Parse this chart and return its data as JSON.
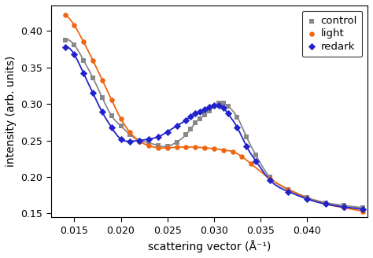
{
  "title": "",
  "xlabel": "scattering vector (Å⁻¹)",
  "ylabel": "intensity (arb. units)",
  "xlim": [
    0.0125,
    0.0465
  ],
  "ylim": [
    0.145,
    0.435
  ],
  "yticks": [
    0.15,
    0.2,
    0.25,
    0.3,
    0.35,
    0.4
  ],
  "xticks": [
    0.015,
    0.02,
    0.025,
    0.03,
    0.035,
    0.04
  ],
  "control_color": "#888888",
  "light_color": "#ee6611",
  "redark_color": "#2222cc",
  "control_x": [
    0.014,
    0.015,
    0.016,
    0.017,
    0.018,
    0.019,
    0.02,
    0.021,
    0.022,
    0.023,
    0.024,
    0.025,
    0.026,
    0.027,
    0.0275,
    0.028,
    0.0285,
    0.029,
    0.0295,
    0.03,
    0.0305,
    0.031,
    0.0315,
    0.0325,
    0.0335,
    0.0345,
    0.036,
    0.038,
    0.04,
    0.042,
    0.044,
    0.046
  ],
  "control_y": [
    0.388,
    0.381,
    0.36,
    0.336,
    0.309,
    0.284,
    0.27,
    0.258,
    0.25,
    0.247,
    0.243,
    0.242,
    0.248,
    0.258,
    0.266,
    0.274,
    0.28,
    0.285,
    0.291,
    0.297,
    0.301,
    0.301,
    0.297,
    0.282,
    0.255,
    0.23,
    0.2,
    0.183,
    0.172,
    0.165,
    0.161,
    0.158
  ],
  "light_x": [
    0.014,
    0.015,
    0.016,
    0.017,
    0.018,
    0.019,
    0.02,
    0.021,
    0.022,
    0.023,
    0.024,
    0.025,
    0.026,
    0.027,
    0.028,
    0.029,
    0.03,
    0.031,
    0.032,
    0.033,
    0.034,
    0.036,
    0.038,
    0.04,
    0.042,
    0.044,
    0.046
  ],
  "light_y": [
    0.422,
    0.408,
    0.385,
    0.36,
    0.333,
    0.306,
    0.28,
    0.261,
    0.249,
    0.243,
    0.24,
    0.24,
    0.241,
    0.241,
    0.241,
    0.24,
    0.239,
    0.237,
    0.235,
    0.228,
    0.218,
    0.198,
    0.183,
    0.171,
    0.163,
    0.158,
    0.153
  ],
  "redark_x": [
    0.014,
    0.015,
    0.016,
    0.017,
    0.018,
    0.019,
    0.02,
    0.021,
    0.022,
    0.023,
    0.024,
    0.025,
    0.026,
    0.027,
    0.0275,
    0.028,
    0.0285,
    0.029,
    0.0295,
    0.03,
    0.0305,
    0.031,
    0.0315,
    0.0325,
    0.0335,
    0.0345,
    0.036,
    0.038,
    0.04,
    0.042,
    0.044,
    0.046
  ],
  "redark_y": [
    0.378,
    0.368,
    0.342,
    0.315,
    0.289,
    0.268,
    0.252,
    0.249,
    0.25,
    0.252,
    0.255,
    0.262,
    0.27,
    0.278,
    0.283,
    0.287,
    0.29,
    0.293,
    0.296,
    0.298,
    0.298,
    0.295,
    0.287,
    0.268,
    0.242,
    0.222,
    0.196,
    0.18,
    0.17,
    0.163,
    0.159,
    0.156
  ],
  "background_color": "#ffffff",
  "legend_loc": "upper right"
}
